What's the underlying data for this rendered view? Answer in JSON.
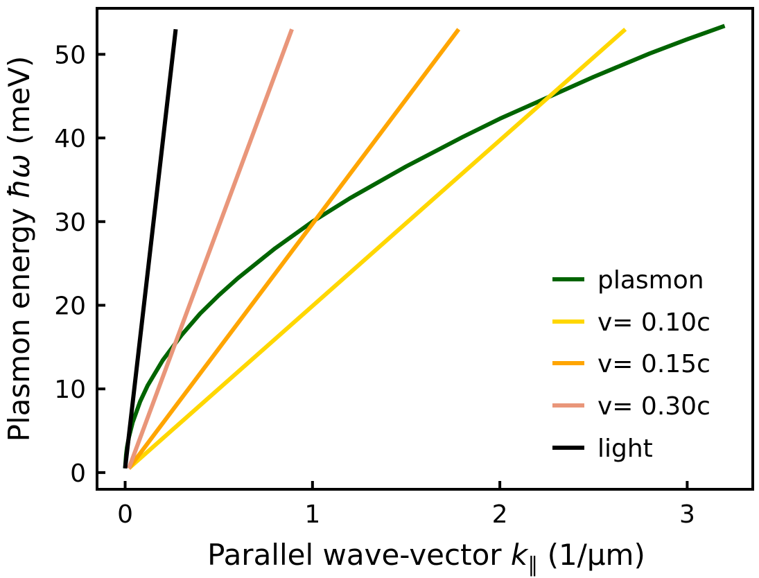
{
  "chart_data": {
    "type": "line",
    "xlabel_pre": "Parallel wave-vector ",
    "xlabel_sym": "k",
    "xlabel_sub": "∥",
    "xlabel_post": " (1/μm)",
    "ylabel_pre": "Plasmon energy ",
    "ylabel_sym": "ħω",
    "ylabel_post": " (meV)",
    "xlim": [
      -0.15,
      3.35
    ],
    "ylim": [
      -2,
      55.5
    ],
    "x_ticks": [
      0,
      1,
      2,
      3
    ],
    "y_ticks": [
      0,
      10,
      20,
      30,
      40,
      50
    ],
    "x_tick_labels": [
      "0",
      "1",
      "2",
      "3"
    ],
    "y_tick_labels": [
      "0",
      "10",
      "20",
      "30",
      "40",
      "50"
    ],
    "grid": false,
    "legend_position": "lower-right",
    "series": [
      {
        "name": "plasmon",
        "color": "#006400",
        "x": [
          0.0,
          0.005,
          0.01,
          0.02,
          0.04,
          0.08,
          0.12,
          0.2,
          0.3,
          0.4,
          0.5,
          0.6,
          0.8,
          1.0,
          1.2,
          1.5,
          1.8,
          2.0,
          2.2,
          2.5,
          2.8,
          3.0,
          3.2
        ],
        "y": [
          0.5,
          2.1,
          3.0,
          4.2,
          6.0,
          8.5,
          10.4,
          13.4,
          16.4,
          19.0,
          21.2,
          23.2,
          26.8,
          30.0,
          32.8,
          36.6,
          40.1,
          42.3,
          44.3,
          47.3,
          50.1,
          51.8,
          53.4
        ]
      },
      {
        "name": "v= 0.10c",
        "color": "#FFD700",
        "x": [
          0.02,
          2.67
        ],
        "y": [
          0.5,
          53.0
        ]
      },
      {
        "name": "v= 0.15c",
        "color": "#FFA500",
        "x": [
          0.02,
          1.78
        ],
        "y": [
          0.5,
          53.0
        ]
      },
      {
        "name": "v= 0.30c",
        "color": "#E9967A",
        "x": [
          0.02,
          0.89
        ],
        "y": [
          0.5,
          53.0
        ]
      },
      {
        "name": "light",
        "color": "#000000",
        "x": [
          0.0,
          0.27
        ],
        "y": [
          0.5,
          53.0
        ]
      }
    ]
  }
}
